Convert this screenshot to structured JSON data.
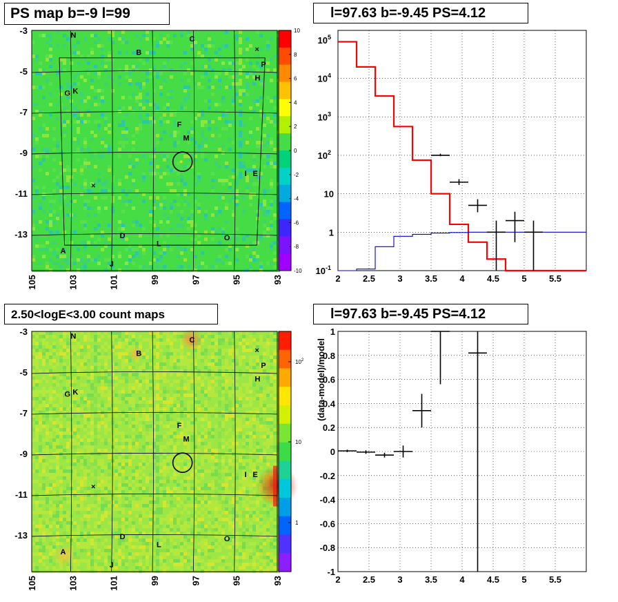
{
  "titles": {
    "top_left": "PS map b=-9 l=99",
    "top_right": "l=97.63 b=-9.45 PS=4.12",
    "bottom_left": "2.50<logE<3.00 count maps",
    "bottom_right": "l=97.63 b=-9.45 PS=4.12"
  },
  "chart_data": [
    {
      "type": "heatmap",
      "title": "PS map b=-9 l=99",
      "x_ticks": [
        "105",
        "103",
        "101",
        "99",
        "97",
        "95",
        "93"
      ],
      "y_ticks": [
        "-3",
        "-5",
        "-7",
        "-9",
        "-11",
        "-13"
      ],
      "xlim": [
        105,
        93
      ],
      "ylim": [
        -3,
        -14.8
      ],
      "colorbar": {
        "min": -10,
        "max": 10,
        "ticks": [
          "10",
          "8",
          "6",
          "4",
          "2",
          "0",
          "-2",
          "-4",
          "-6",
          "-8",
          "-10"
        ]
      },
      "dominant_color": "#46dc46",
      "sources": [
        {
          "name": "N",
          "l": 103.1,
          "b": -3.35
        },
        {
          "name": "C",
          "l": 97.3,
          "b": -3.55
        },
        {
          "name": "B",
          "l": 99.9,
          "b": -4.2
        },
        {
          "name": "P",
          "l": 93.8,
          "b": -4.8
        },
        {
          "name": "H",
          "l": 94.1,
          "b": -5.45
        },
        {
          "name": "G",
          "l": 103.4,
          "b": -6.2
        },
        {
          "name": "K",
          "l": 103.0,
          "b": -6.1
        },
        {
          "name": "F",
          "l": 97.9,
          "b": -7.75
        },
        {
          "name": "M",
          "l": 97.6,
          "b": -8.4
        },
        {
          "name": "I",
          "l": 94.6,
          "b": -10.15
        },
        {
          "name": "E",
          "l": 94.2,
          "b": -10.15
        },
        {
          "name": "D",
          "l": 100.7,
          "b": -13.2
        },
        {
          "name": "O",
          "l": 95.6,
          "b": -13.3
        },
        {
          "name": "L",
          "l": 98.9,
          "b": -13.6
        },
        {
          "name": "A",
          "l": 103.6,
          "b": -13.95
        },
        {
          "name": "J",
          "l": 101.2,
          "b": -14.6
        }
      ],
      "crosses": [
        {
          "l": 94.1,
          "b": -4.05
        },
        {
          "l": 102.1,
          "b": -10.75
        }
      ],
      "circle": {
        "l": 97.63,
        "b": -9.45
      }
    },
    {
      "type": "line",
      "title": "l=97.63 b=-9.45 PS=4.12",
      "xlim": [
        2,
        6
      ],
      "ylim_log": [
        0.1,
        100000
      ],
      "log_y": true,
      "x_ticks": [
        "2",
        "2.5",
        "3",
        "3.5",
        "4",
        "4.5",
        "5",
        "5.5"
      ],
      "y_ticks": [
        "10^5",
        "10^4",
        "10^3",
        "10^2",
        "10",
        "1",
        "10^-1"
      ],
      "series": [
        {
          "color": "#ff0000",
          "edges": [
            2.0,
            2.3,
            2.6,
            2.9,
            3.2,
            3.5,
            3.8,
            4.1,
            4.4,
            4.7,
            5.0,
            6.0
          ],
          "values": [
            90000,
            20000,
            3500,
            560,
            75,
            10,
            1.6,
            0.55,
            0.2,
            0.1,
            0.1
          ]
        },
        {
          "color": "#0000cc",
          "edges": [
            2.0,
            2.3,
            2.6,
            2.9,
            3.2,
            3.5,
            3.8,
            4.1,
            4.4,
            4.7,
            5.0,
            6.0
          ],
          "values": [
            0.05,
            0.11,
            0.42,
            0.78,
            0.88,
            0.95,
            0.98,
            1.0,
            1.0,
            1.0,
            1.0
          ]
        },
        {
          "color": "#000000",
          "points": [
            {
              "x": 3.65,
              "y": 100,
              "xerr": 0.15,
              "ylo": 95,
              "yhi": 110
            },
            {
              "x": 3.95,
              "y": 20,
              "xerr": 0.15,
              "ylo": 17,
              "yhi": 24
            },
            {
              "x": 4.25,
              "y": 5,
              "xerr": 0.15,
              "ylo": 3.3,
              "yhi": 7.2
            },
            {
              "x": 4.55,
              "y": 1,
              "xerr": 0.15,
              "ylo": 0.1,
              "yhi": 2.0
            },
            {
              "x": 4.85,
              "y": 2,
              "xerr": 0.15,
              "ylo": 0.55,
              "yhi": 3.4
            },
            {
              "x": 5.15,
              "y": 1,
              "xerr": 0.15,
              "ylo": 0.1,
              "yhi": 2.0
            }
          ]
        }
      ]
    },
    {
      "type": "heatmap",
      "title": "2.50<logE<3.00 count maps",
      "x_ticks": [
        "105",
        "103",
        "101",
        "99",
        "97",
        "95",
        "93"
      ],
      "y_ticks": [
        "-3",
        "-5",
        "-7",
        "-9",
        "-11",
        "-13"
      ],
      "colorbar": {
        "scale": "log",
        "ticks": [
          "10^2",
          "10",
          "1"
        ]
      },
      "dominant_color": "#9ce646",
      "hotspots": [
        {
          "l": 93.0,
          "b": -10.6,
          "color": "#e03010",
          "strength": "high"
        },
        {
          "l": 97.2,
          "b": -3.4,
          "color": "#f08c3c",
          "strength": "medium"
        },
        {
          "l": 103.4,
          "b": -14.0,
          "color": "#f0c83c",
          "strength": "medium"
        },
        {
          "l": 99.9,
          "b": -4.1,
          "color": "#f0b43c",
          "strength": "low"
        }
      ]
    },
    {
      "type": "scatter",
      "title": "l=97.63 b=-9.45 PS=4.12",
      "xlim": [
        2,
        6
      ],
      "ylim": [
        -1,
        1
      ],
      "ylabel": "(data-model)/model",
      "x_ticks": [
        "2",
        "2.5",
        "3",
        "3.5",
        "4",
        "4.5",
        "5",
        "5.5"
      ],
      "y_ticks": [
        "1",
        "0.8",
        "0.6",
        "0.4",
        "0.2",
        "0",
        "-0.2",
        "-0.4",
        "-0.6",
        "-0.8",
        "-1"
      ],
      "points": [
        {
          "x": 2.15,
          "y": 0.005,
          "xerr": 0.15,
          "ylo": -0.005,
          "yhi": 0.015
        },
        {
          "x": 2.45,
          "y": -0.005,
          "xerr": 0.15,
          "ylo": -0.02,
          "yhi": 0.01
        },
        {
          "x": 2.75,
          "y": -0.03,
          "xerr": 0.15,
          "ylo": -0.05,
          "yhi": -0.01
        },
        {
          "x": 3.05,
          "y": 0.0,
          "xerr": 0.15,
          "ylo": -0.05,
          "yhi": 0.05
        },
        {
          "x": 3.35,
          "y": 0.34,
          "xerr": 0.15,
          "ylo": 0.2,
          "yhi": 0.48
        },
        {
          "x": 3.65,
          "y": 1.0,
          "xerr": 0.15,
          "ylo": 0.56,
          "yhi": 1.0
        },
        {
          "x": 4.25,
          "y": 0.82,
          "xerr": 0.15,
          "ylo": -1.0,
          "yhi": 1.0
        }
      ]
    }
  ]
}
